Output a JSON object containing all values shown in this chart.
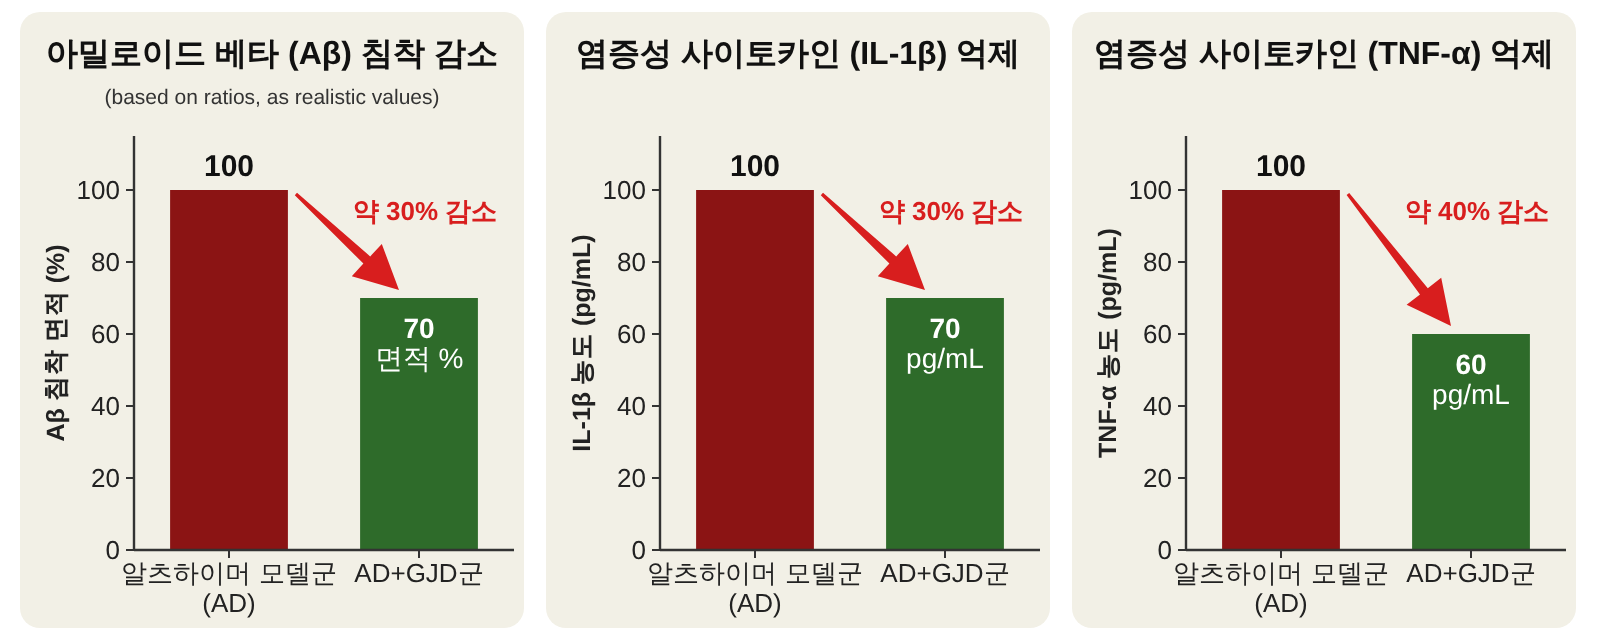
{
  "chart_data": [
    {
      "type": "bar",
      "title": "아밀로이드 베타 (Aβ) 침착 감소",
      "subtitle": "(based on ratios, as realistic values)",
      "ylabel": "Aβ 침착 면적 (%)",
      "categories": [
        "알츠하이머 모델군\n(AD)",
        "AD+GJD군"
      ],
      "values": [
        100,
        70
      ],
      "colors": [
        "#8b1414",
        "#2e6b2a"
      ],
      "value_labels": [
        "100",
        "70\n면적 %"
      ],
      "ylim": [
        0,
        115
      ],
      "yticks": [
        0,
        20,
        40,
        60,
        80,
        100
      ],
      "annotations": [
        "약 30% 감소"
      ]
    },
    {
      "type": "bar",
      "title": "염증성 사이토카인 (IL-1β) 억제",
      "ylabel": "IL-1β 농도 (pg/mL)",
      "categories": [
        "알츠하이머 모델군\n(AD)",
        "AD+GJD군"
      ],
      "values": [
        100,
        70
      ],
      "colors": [
        "#8b1414",
        "#2e6b2a"
      ],
      "value_labels": [
        "100",
        "70\npg/mL"
      ],
      "ylim": [
        0,
        115
      ],
      "yticks": [
        0,
        20,
        40,
        60,
        80,
        100
      ],
      "annotations": [
        "약 30% 감소"
      ]
    },
    {
      "type": "bar",
      "title": "염증성 사이토카인 (TNF-α) 억제",
      "ylabel": "TNF-α 농도 (pg/mL)",
      "categories": [
        "알츠하이머 모델군\n(AD)",
        "AD+GJD군"
      ],
      "values": [
        100,
        60
      ],
      "colors": [
        "#8b1414",
        "#2e6b2a"
      ],
      "value_labels": [
        "100",
        "60\npg/mL"
      ],
      "ylim": [
        0,
        115
      ],
      "yticks": [
        0,
        20,
        40,
        60,
        80,
        100
      ],
      "annotations": [
        "약 40% 감소"
      ]
    }
  ]
}
